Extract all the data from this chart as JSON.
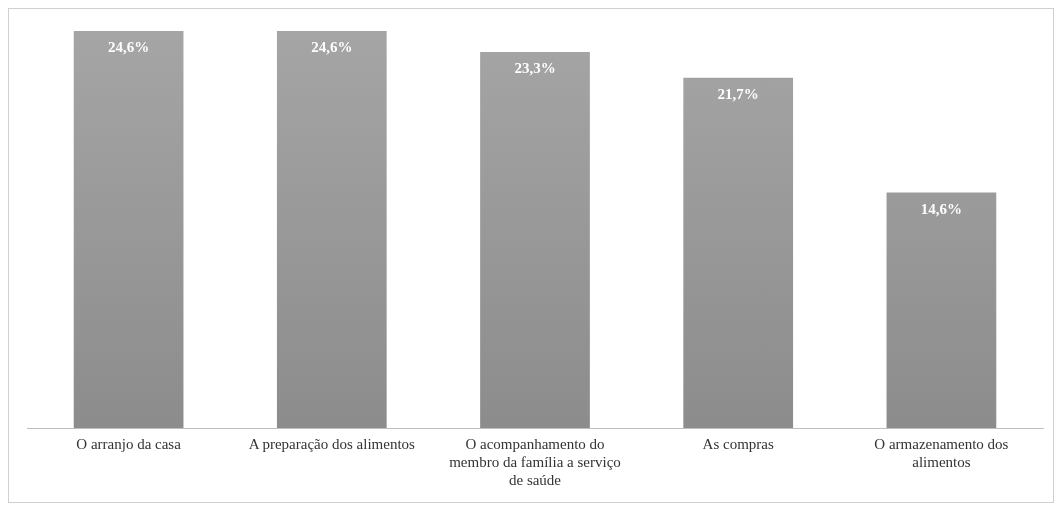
{
  "chart_data": {
    "type": "bar",
    "categories": [
      "O arranjo da casa",
      "A preparação dos alimentos",
      "O acompanhamento do membro da família a serviço de saúde",
      "As compras",
      "O armazenamento dos alimentos"
    ],
    "values": [
      24.6,
      24.6,
      23.3,
      21.7,
      14.6
    ],
    "value_labels": [
      "24,6%",
      "24,6%",
      "23,3%",
      "21,7%",
      "14,6%"
    ],
    "color": "#a5a5a5",
    "ylim": [
      0,
      24.6
    ],
    "grid": false,
    "legend": false
  }
}
